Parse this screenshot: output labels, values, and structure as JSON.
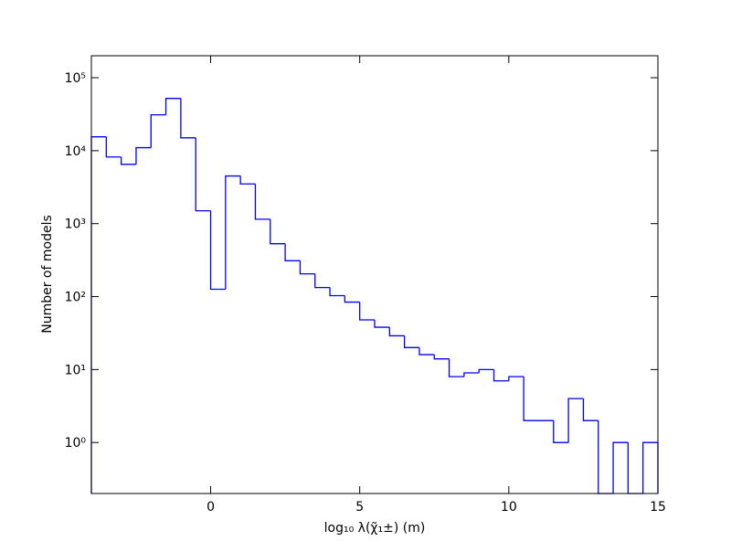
{
  "chart_data": {
    "type": "histogram",
    "xlabel": "log₁₀ λ(χ̃₁±) (m)",
    "ylabel": "Number of models",
    "bins": [
      -4,
      -3.5,
      -3,
      -2.5,
      -2,
      -1.5,
      -1,
      -0.5,
      0,
      0.5,
      1,
      1.5,
      2,
      2.5,
      3,
      3.5,
      4,
      4.5,
      5,
      5.5,
      6,
      6.5,
      7,
      7.5,
      8,
      8.5,
      9,
      9.5,
      10,
      10.5,
      11,
      11.5,
      12,
      12.5,
      13,
      13.5,
      14,
      14.5,
      15
    ],
    "counts": [
      15500,
      8200,
      6500,
      11000,
      31000,
      52000,
      15000,
      1500,
      126,
      4500,
      3500,
      1150,
      530,
      310,
      205,
      133,
      103,
      84,
      48,
      38,
      29,
      20,
      16,
      14,
      8,
      9,
      10,
      7,
      8,
      2,
      2,
      1,
      4,
      2,
      0,
      1,
      0,
      1
    ],
    "color": "#0000ff",
    "xlim": [
      -4,
      15
    ],
    "xticks": [
      0,
      5,
      10,
      15
    ],
    "ylim": [
      0.2,
      200000
    ],
    "log_y": true,
    "yticks": [
      {
        "value": 1,
        "label": "10⁰"
      },
      {
        "value": 10,
        "label": "10¹"
      },
      {
        "value": 100,
        "label": "10²"
      },
      {
        "value": 1000,
        "label": "10³"
      },
      {
        "value": 10000,
        "label": "10⁴"
      },
      {
        "value": 100000,
        "label": "10⁵"
      }
    ]
  }
}
